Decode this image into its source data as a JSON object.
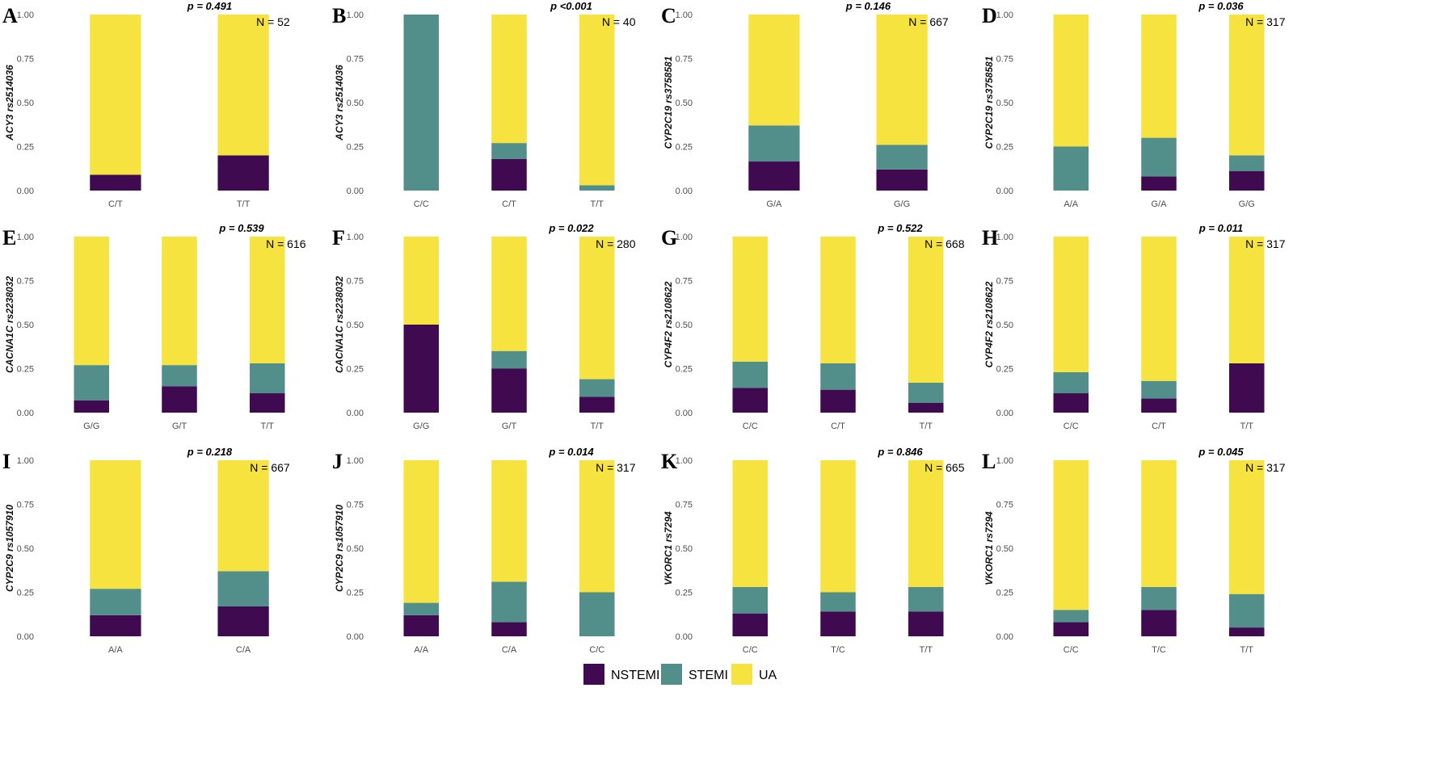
{
  "chart_data": {
    "type": "bar",
    "stacked": true,
    "ylim": [
      0,
      1
    ],
    "yticks": [
      "0.00",
      "0.25",
      "0.50",
      "0.75",
      "1.00"
    ],
    "legend": {
      "placement": "bottom",
      "entries": [
        "NSTEMI",
        "STEMI",
        "UA"
      ]
    },
    "colors": {
      "NSTEMI": "#3f0a4f",
      "STEMI": "#528e8a",
      "UA": "#f6e33f"
    },
    "panels": [
      {
        "letter": "A",
        "ylabel": "ACY3 rs2514036",
        "p": "p = 0.491",
        "n": "N = 52",
        "categories": [
          "C/T",
          "T/T"
        ],
        "NSTEMI": [
          0.09,
          0.2
        ],
        "STEMI": [
          0.0,
          0.0
        ],
        "UA": [
          0.91,
          0.8
        ]
      },
      {
        "letter": "B",
        "ylabel": "ACY3 rs2514036",
        "p": "p <0.001",
        "n": "N = 40",
        "categories": [
          "C/C",
          "C/T",
          "T/T"
        ],
        "NSTEMI": [
          0.0,
          0.18,
          0.0
        ],
        "STEMI": [
          1.0,
          0.09,
          0.03
        ],
        "UA": [
          0.0,
          0.73,
          0.97
        ]
      },
      {
        "letter": "C",
        "ylabel": "CYP2C19 rs3758581",
        "p": "p = 0.146",
        "n": "N = 667",
        "categories": [
          "G/A",
          "G/G"
        ],
        "NSTEMI": [
          0.165,
          0.12
        ],
        "STEMI": [
          0.205,
          0.14
        ],
        "UA": [
          0.63,
          0.74
        ]
      },
      {
        "letter": "D",
        "ylabel": "CYP2C19 rs3758581",
        "p": "p = 0.036",
        "n": "N = 317",
        "categories": [
          "A/A",
          "G/A",
          "G/G"
        ],
        "NSTEMI": [
          0.0,
          0.08,
          0.11
        ],
        "STEMI": [
          0.25,
          0.22,
          0.09
        ],
        "UA": [
          0.75,
          0.7,
          0.8
        ]
      },
      {
        "letter": "E",
        "ylabel": "CACNA1C rs2238032",
        "p": "p = 0.539",
        "n": "N = 616",
        "categories": [
          "G/G",
          "G/T",
          "T/T"
        ],
        "NSTEMI": [
          0.07,
          0.15,
          0.11
        ],
        "STEMI": [
          0.2,
          0.12,
          0.17
        ],
        "UA": [
          0.73,
          0.73,
          0.72
        ]
      },
      {
        "letter": "F",
        "ylabel": "CACNA1C rs2238032",
        "p": "p = 0.022",
        "n": "N = 280",
        "categories": [
          "G/G",
          "G/T",
          "T/T"
        ],
        "NSTEMI": [
          0.5,
          0.25,
          0.09
        ],
        "STEMI": [
          0.0,
          0.1,
          0.1
        ],
        "UA": [
          0.5,
          0.65,
          0.81
        ]
      },
      {
        "letter": "G",
        "ylabel": "CYP4F2 rs2108622",
        "p": "p = 0.522",
        "n": "N = 668",
        "categories": [
          "C/C",
          "C/T",
          "T/T"
        ],
        "NSTEMI": [
          0.14,
          0.13,
          0.055
        ],
        "STEMI": [
          0.15,
          0.15,
          0.115
        ],
        "UA": [
          0.71,
          0.72,
          0.83
        ]
      },
      {
        "letter": "H",
        "ylabel": "CYP4F2 rs2108622",
        "p": "p = 0.011",
        "n": "N = 317",
        "categories": [
          "C/C",
          "C/T",
          "T/T"
        ],
        "NSTEMI": [
          0.11,
          0.08,
          0.28
        ],
        "STEMI": [
          0.12,
          0.1,
          0.0
        ],
        "UA": [
          0.77,
          0.82,
          0.72
        ]
      },
      {
        "letter": "I",
        "ylabel": "CYP2C9 rs1057910",
        "p": "p = 0.218",
        "n": "N = 667",
        "categories": [
          "A/A",
          "C/A"
        ],
        "NSTEMI": [
          0.12,
          0.17
        ],
        "STEMI": [
          0.15,
          0.2
        ],
        "UA": [
          0.73,
          0.63
        ]
      },
      {
        "letter": "J",
        "ylabel": "CYP2C9 rs1057910",
        "p": "p = 0.014",
        "n": "N = 317",
        "categories": [
          "A/A",
          "C/A",
          "C/C"
        ],
        "NSTEMI": [
          0.12,
          0.08,
          0.0
        ],
        "STEMI": [
          0.07,
          0.23,
          0.25
        ],
        "UA": [
          0.81,
          0.69,
          0.75
        ]
      },
      {
        "letter": "K",
        "ylabel": "VKORC1 rs7294",
        "p": "p = 0.846",
        "n": "N = 665",
        "categories": [
          "C/C",
          "T/C",
          "T/T"
        ],
        "NSTEMI": [
          0.13,
          0.14,
          0.14
        ],
        "STEMI": [
          0.15,
          0.11,
          0.14
        ],
        "UA": [
          0.72,
          0.75,
          0.72
        ]
      },
      {
        "letter": "L",
        "ylabel": "VKORC1 rs7294",
        "p": "p = 0.045",
        "n": "N = 317",
        "categories": [
          "C/C",
          "T/C",
          "T/T"
        ],
        "NSTEMI": [
          0.08,
          0.15,
          0.05
        ],
        "STEMI": [
          0.07,
          0.13,
          0.19
        ],
        "UA": [
          0.85,
          0.72,
          0.76
        ]
      }
    ]
  }
}
